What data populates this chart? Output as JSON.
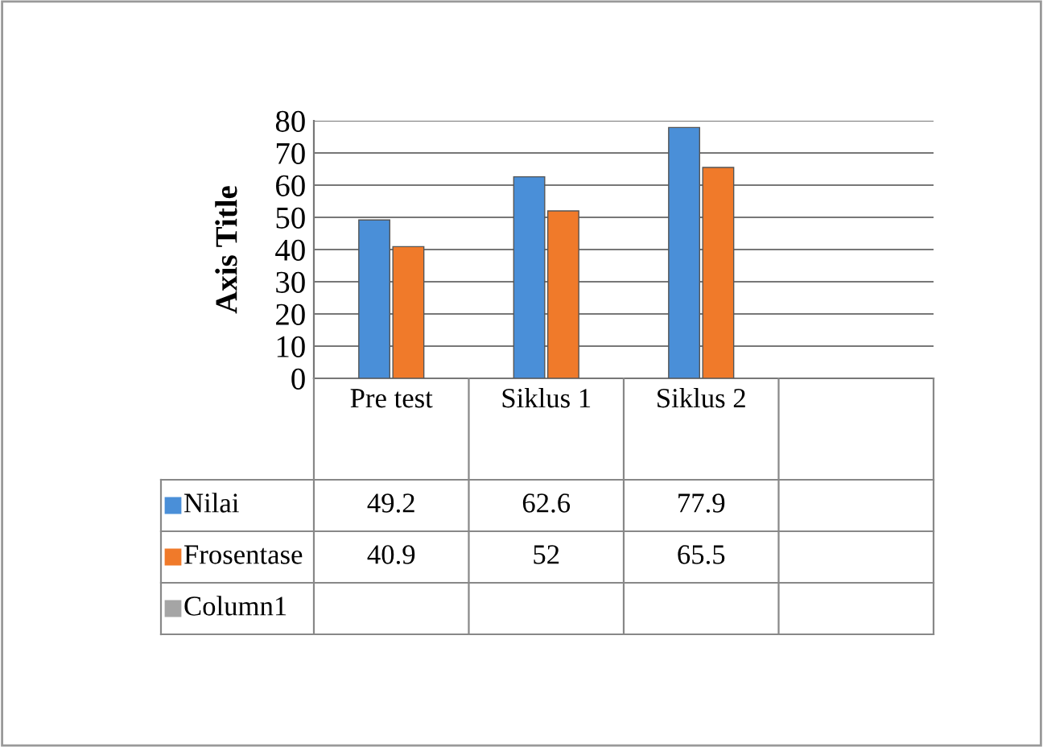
{
  "chart_data": {
    "type": "bar",
    "ylabel": "Axis Title",
    "categories": [
      "Pre test",
      "Siklus 1",
      "Siklus 2",
      null
    ],
    "series": [
      {
        "name": "Nilai",
        "color": "#4a8fd8",
        "values": [
          49.2,
          62.6,
          77.9,
          null
        ]
      },
      {
        "name": "Frosentase",
        "color": "#f07a2a",
        "values": [
          40.9,
          52,
          65.5,
          null
        ]
      },
      {
        "name": "Column1",
        "color": "#a5a5a5",
        "values": [
          null,
          null,
          null,
          null
        ]
      }
    ],
    "ylim": [
      0,
      80
    ],
    "yticks": [
      0,
      10,
      20,
      30,
      40,
      50,
      60,
      70,
      80
    ],
    "grid": "y",
    "data_labels": true,
    "legend": "bottom left"
  }
}
